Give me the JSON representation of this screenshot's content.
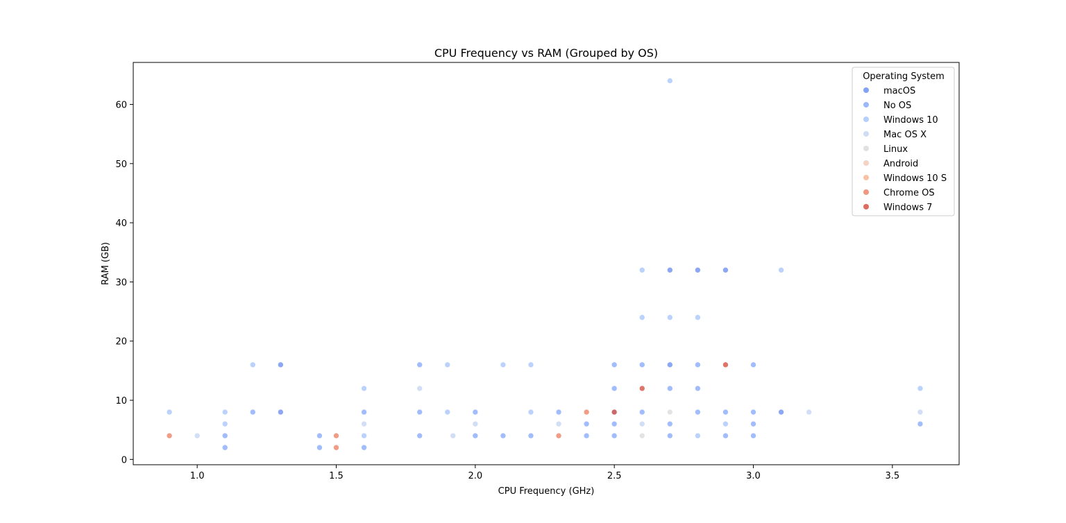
{
  "chart_data": {
    "type": "scatter",
    "title": "CPU Frequency vs RAM (Grouped by OS)",
    "xlabel": "CPU Frequency (GHz)",
    "ylabel": "RAM (GB)",
    "xlim": [
      0.77,
      3.74
    ],
    "ylim": [
      -0.9,
      67.1
    ],
    "xticks": [
      1.0,
      1.5,
      2.0,
      2.5,
      3.0,
      3.5
    ],
    "xtick_labels": [
      "1.0",
      "1.5",
      "2.0",
      "2.5",
      "3.0",
      "3.5"
    ],
    "yticks": [
      0,
      10,
      20,
      30,
      40,
      50,
      60
    ],
    "ytick_labels": [
      "0",
      "10",
      "20",
      "30",
      "40",
      "50",
      "60"
    ],
    "grid": false,
    "legend": {
      "title": "Operating System",
      "placement": "top-right"
    },
    "series": [
      {
        "name": "macOS",
        "color": "#6f92f3",
        "points": [
          [
            1.3,
            16
          ],
          [
            1.3,
            8
          ],
          [
            3.1,
            8
          ],
          [
            2.7,
            32
          ],
          [
            2.8,
            32
          ],
          [
            2.9,
            32
          ],
          [
            2.7,
            16
          ]
        ]
      },
      {
        "name": "No OS",
        "color": "#89acfd",
        "points": [
          [
            1.1,
            4
          ],
          [
            1.1,
            2
          ],
          [
            1.44,
            4
          ],
          [
            1.44,
            2
          ],
          [
            1.6,
            8
          ],
          [
            1.6,
            2
          ],
          [
            1.8,
            16
          ],
          [
            1.8,
            8
          ],
          [
            1.8,
            4
          ],
          [
            2.0,
            8
          ],
          [
            2.0,
            4
          ],
          [
            2.1,
            4
          ],
          [
            2.2,
            4
          ],
          [
            2.3,
            8
          ],
          [
            2.4,
            6
          ],
          [
            2.4,
            4
          ],
          [
            2.5,
            16
          ],
          [
            2.5,
            12
          ],
          [
            2.5,
            8
          ],
          [
            2.5,
            6
          ],
          [
            2.5,
            4
          ],
          [
            2.6,
            16
          ],
          [
            2.6,
            8
          ],
          [
            2.7,
            12
          ],
          [
            2.7,
            6
          ],
          [
            2.7,
            4
          ],
          [
            2.8,
            16
          ],
          [
            2.8,
            12
          ],
          [
            2.8,
            8
          ],
          [
            2.9,
            8
          ],
          [
            2.9,
            4
          ],
          [
            3.0,
            16
          ],
          [
            3.0,
            8
          ],
          [
            3.0,
            6
          ],
          [
            3.0,
            4
          ],
          [
            3.6,
            6
          ],
          [
            1.2,
            8
          ]
        ]
      },
      {
        "name": "Windows 10",
        "color": "#aac7fd",
        "points": [
          [
            0.9,
            8
          ],
          [
            1.1,
            8
          ],
          [
            1.1,
            6
          ],
          [
            1.2,
            16
          ],
          [
            1.6,
            12
          ],
          [
            1.6,
            4
          ],
          [
            1.9,
            8
          ],
          [
            1.9,
            16
          ],
          [
            2.1,
            16
          ],
          [
            2.2,
            16
          ],
          [
            2.2,
            8
          ],
          [
            2.6,
            32
          ],
          [
            2.6,
            24
          ],
          [
            2.7,
            64
          ],
          [
            2.7,
            24
          ],
          [
            2.8,
            24
          ],
          [
            2.8,
            4
          ],
          [
            2.9,
            6
          ],
          [
            3.1,
            32
          ],
          [
            3.6,
            12
          ]
        ]
      },
      {
        "name": "Mac OS X",
        "color": "#c5d6f2",
        "points": [
          [
            1.0,
            4
          ],
          [
            1.6,
            6
          ],
          [
            1.8,
            12
          ],
          [
            1.92,
            4
          ],
          [
            2.0,
            6
          ],
          [
            2.3,
            6
          ],
          [
            2.6,
            6
          ],
          [
            3.2,
            8
          ],
          [
            3.6,
            8
          ]
        ]
      },
      {
        "name": "Linux",
        "color": "#dddcdc",
        "points": [
          [
            2.6,
            4
          ],
          [
            2.7,
            8
          ]
        ]
      },
      {
        "name": "Android",
        "color": "#f2cbb7",
        "points": []
      },
      {
        "name": "Windows 10 S",
        "color": "#f7b89c",
        "points": []
      },
      {
        "name": "Chrome OS",
        "color": "#ee8468",
        "points": [
          [
            0.9,
            4
          ],
          [
            1.5,
            4
          ],
          [
            1.5,
            2
          ],
          [
            2.3,
            4
          ],
          [
            2.4,
            8
          ]
        ]
      },
      {
        "name": "Windows 7",
        "color": "#d65244",
        "points": [
          [
            2.5,
            8
          ],
          [
            2.6,
            12
          ],
          [
            2.9,
            16
          ]
        ]
      }
    ]
  }
}
